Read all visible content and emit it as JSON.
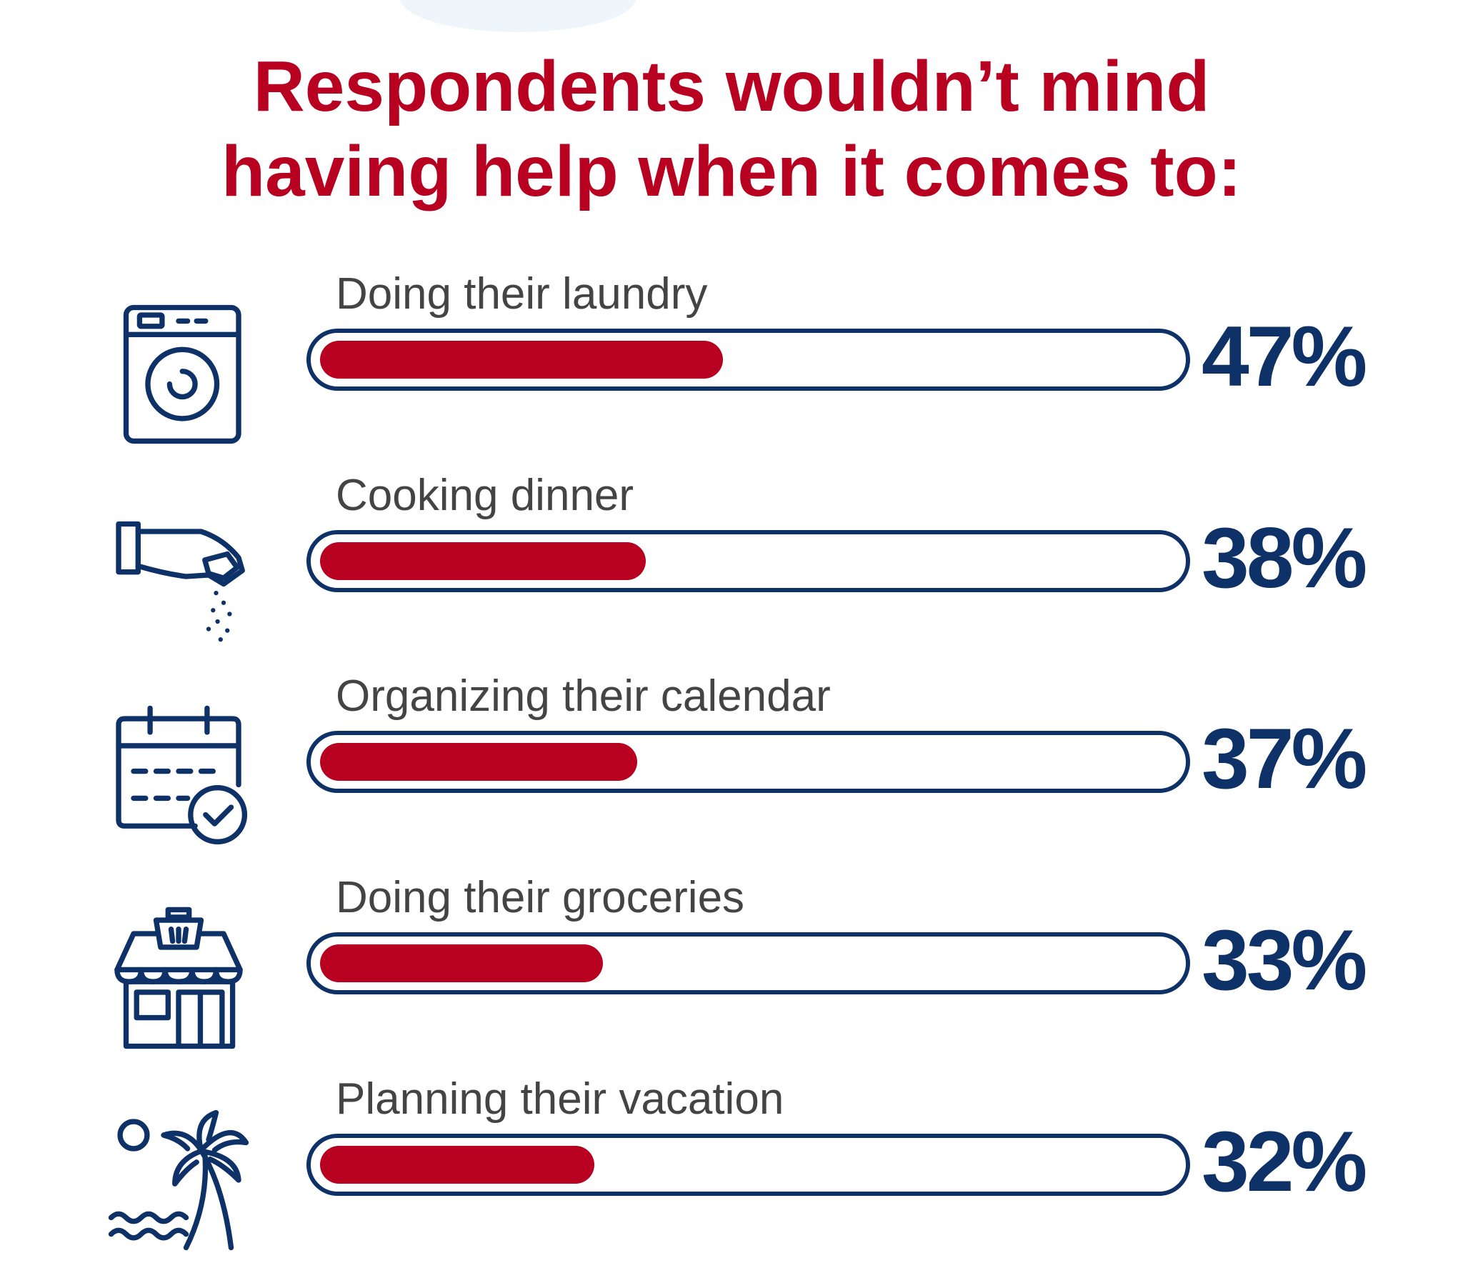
{
  "title": {
    "line1": "Respondents wouldn’t mind",
    "line2": "having help when it comes to:"
  },
  "colors": {
    "title": "#b80020",
    "bar_fill": "#b80020",
    "bar_outline": "#0e3167",
    "percent_text": "#0e3167",
    "label_text": "#444444",
    "icon_stroke": "#0e3167"
  },
  "chart_data": {
    "type": "bar",
    "orientation": "horizontal",
    "title": "Respondents wouldn’t mind having help when it comes to:",
    "categories": [
      "Doing their laundry",
      "Cooking dinner",
      "Organizing their calendar",
      "Doing their groceries",
      "Planning their vacation"
    ],
    "values": [
      47,
      38,
      37,
      33,
      32
    ],
    "value_labels": [
      "47%",
      "38%",
      "37%",
      "33%",
      "32%"
    ],
    "icons": [
      "washing-machine-icon",
      "salt-sprinkle-icon",
      "calendar-check-icon",
      "grocery-store-icon",
      "beach-palm-icon"
    ],
    "xlim": [
      0,
      100
    ],
    "unit": "%",
    "grid": false,
    "legend": "none"
  }
}
